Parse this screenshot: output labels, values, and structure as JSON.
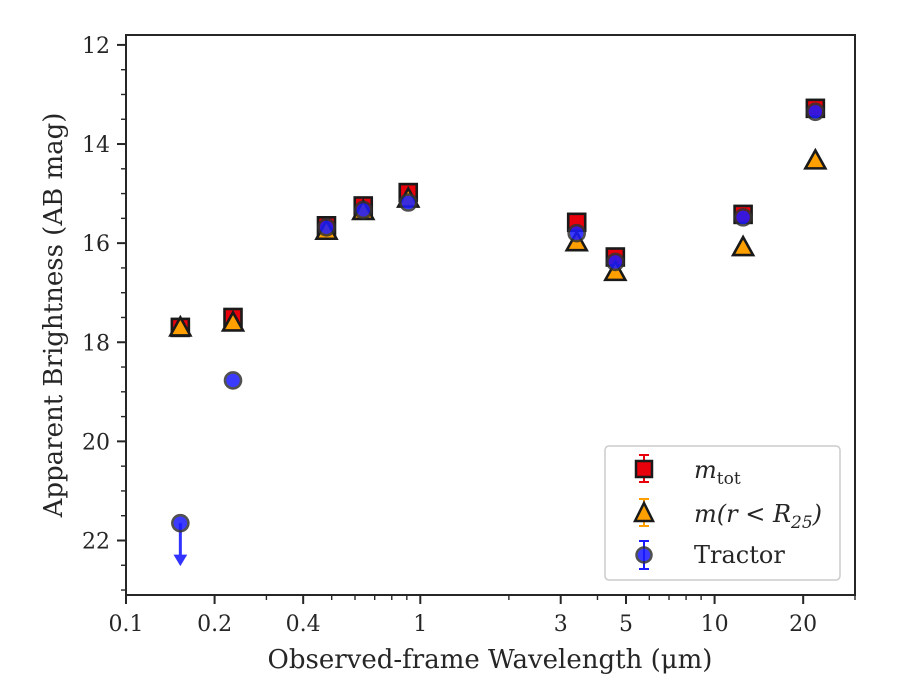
{
  "chart_data": {
    "type": "scatter",
    "title": "",
    "xlabel": "Observed-frame Wavelength (μm)",
    "ylabel": "Apparent Brightness (AB mag)",
    "xscale": "log",
    "xlim": [
      0.1,
      30
    ],
    "ylim": [
      23.1,
      11.8
    ],
    "y_inverted": true,
    "grid": false,
    "legend_position": "lower-right",
    "x_tick_labels": [
      "0.1",
      "0.2",
      "0.4",
      "1",
      "3",
      "5",
      "10",
      "20"
    ],
    "x_tick_values": [
      0.1,
      0.2,
      0.4,
      1,
      3,
      5,
      10,
      20
    ],
    "y_tick_labels": [
      "12",
      "14",
      "16",
      "18",
      "20",
      "22"
    ],
    "y_tick_values": [
      12,
      14,
      16,
      18,
      20,
      22
    ],
    "series": [
      {
        "name": "m_tot",
        "legend_label": "m_tot",
        "marker": "square",
        "color": "#e8000b",
        "points": [
          {
            "x": 0.153,
            "y": 17.7
          },
          {
            "x": 0.231,
            "y": 17.5
          },
          {
            "x": 0.48,
            "y": 15.65
          },
          {
            "x": 0.64,
            "y": 15.25
          },
          {
            "x": 0.91,
            "y": 14.98
          },
          {
            "x": 3.4,
            "y": 15.58
          },
          {
            "x": 4.6,
            "y": 16.28
          },
          {
            "x": 12.5,
            "y": 15.42
          },
          {
            "x": 22.0,
            "y": 13.28
          }
        ]
      },
      {
        "name": "m(r < R25)",
        "legend_label": "m(r < R25)",
        "marker": "triangle",
        "color": "#ff9f00",
        "points": [
          {
            "x": 0.153,
            "y": 17.7
          },
          {
            "x": 0.231,
            "y": 17.6
          },
          {
            "x": 0.48,
            "y": 15.75
          },
          {
            "x": 0.64,
            "y": 15.35
          },
          {
            "x": 0.91,
            "y": 15.1
          },
          {
            "x": 3.4,
            "y": 15.98
          },
          {
            "x": 4.6,
            "y": 16.58
          },
          {
            "x": 12.5,
            "y": 16.08
          },
          {
            "x": 22.0,
            "y": 14.33
          }
        ]
      },
      {
        "name": "Tractor",
        "legend_label": "Tractor",
        "marker": "circle",
        "color": "#1a1aff",
        "points": [
          {
            "x": 0.153,
            "y": 21.65,
            "upper_limit": true
          },
          {
            "x": 0.231,
            "y": 18.77
          },
          {
            "x": 0.48,
            "y": 15.68
          },
          {
            "x": 0.64,
            "y": 15.33
          },
          {
            "x": 0.91,
            "y": 15.18
          },
          {
            "x": 3.4,
            "y": 15.8
          },
          {
            "x": 4.6,
            "y": 16.38
          },
          {
            "x": 12.5,
            "y": 15.48
          },
          {
            "x": 22.0,
            "y": 13.35
          }
        ]
      }
    ]
  },
  "legend": {
    "m_tot": {
      "base": "m",
      "sub": "tot"
    },
    "m_r25": {
      "prefix": "m(r < R",
      "sub": "25",
      "suffix": ")"
    },
    "tractor": "Tractor"
  }
}
